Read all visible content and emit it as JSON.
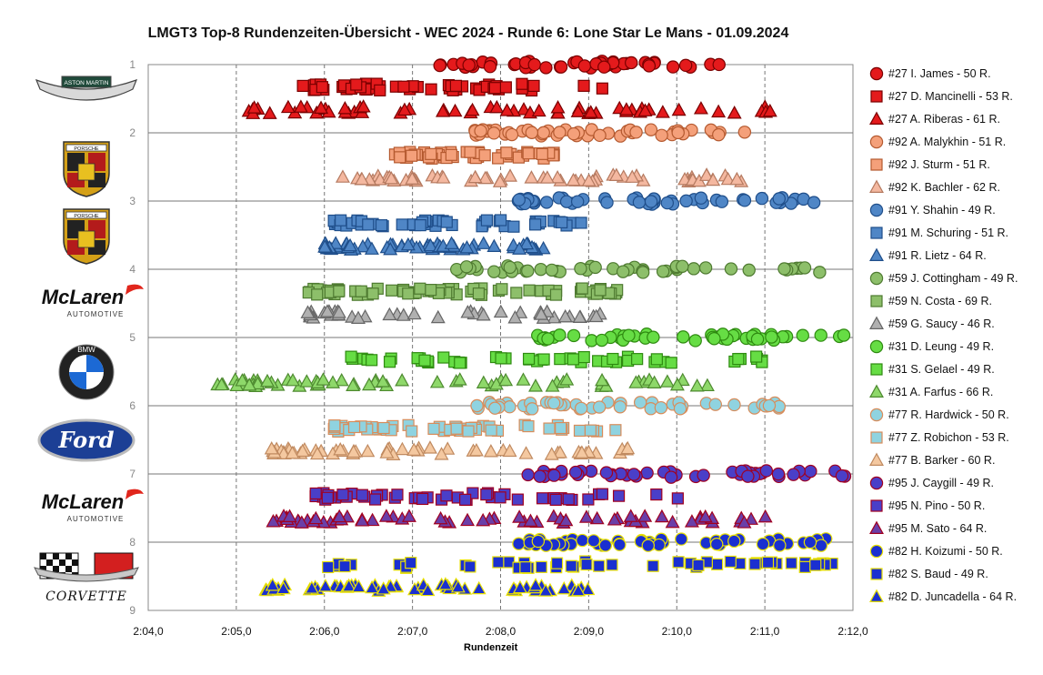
{
  "title": "LMGT3 Top-8 Rundenzeiten-Übersicht - WEC 2024 - Runde 6: Lone Star Le Mans - 01.09.2024",
  "logos": [
    {
      "brand": "aston-martin",
      "text": "ASTON MARTIN"
    },
    {
      "brand": "porsche",
      "text": "PORSCHE"
    },
    {
      "brand": "porsche",
      "text": "PORSCHE"
    },
    {
      "brand": "mclaren",
      "text": "McLaren",
      "sub": "AUTOMOTIVE"
    },
    {
      "brand": "bmw",
      "text": "BMW"
    },
    {
      "brand": "ford",
      "text": "Ford"
    },
    {
      "brand": "mclaren",
      "text": "McLaren",
      "sub": "AUTOMOTIVE"
    },
    {
      "brand": "corvette",
      "text": "CORVETTE"
    }
  ],
  "chart_data": {
    "type": "scatter",
    "title": "LMGT3 Top-8 Rundenzeiten-Übersicht - WEC 2024 - Runde 6: Lone Star Le Mans - 01.09.2024",
    "xlabel": "Rundenzeit",
    "ylabel": "",
    "x_ticks": [
      "2:04,0",
      "2:05,0",
      "2:06,0",
      "2:07,0",
      "2:08,0",
      "2:09,0",
      "2:10,0",
      "2:11,0",
      "2:12,0"
    ],
    "y_ticks": [
      "1",
      "2",
      "3",
      "4",
      "5",
      "6",
      "7",
      "8",
      "9"
    ],
    "xlim_seconds": [
      124.0,
      132.0
    ],
    "ylim": [
      1,
      9
    ],
    "y_reversed": true,
    "grid": {
      "x": "dashed",
      "y": "solid"
    },
    "legend_position": "right",
    "series": [
      {
        "name": "#27 I. James - 50 R.",
        "marker": "circle",
        "fill": "#e41a1c",
        "edge": "#7a0000",
        "y": 1.0,
        "x_range": [
          127.3,
          130.5
        ],
        "laps": 50
      },
      {
        "name": "#27 D. Mancinelli - 53 R.",
        "marker": "square",
        "fill": "#e41a1c",
        "edge": "#7a0000",
        "y": 1.33,
        "x_range": [
          125.75,
          129.3
        ],
        "laps": 53
      },
      {
        "name": "#27 A. Riberas - 61 R.",
        "marker": "triangle",
        "fill": "#e41a1c",
        "edge": "#7a0000",
        "y": 1.67,
        "x_range": [
          125.1,
          131.2
        ],
        "laps": 61
      },
      {
        "name": "#92 A. Malykhin - 51 R.",
        "marker": "circle",
        "fill": "#f4a07a",
        "edge": "#b55a30",
        "y": 2.0,
        "x_range": [
          127.7,
          130.8
        ],
        "laps": 51
      },
      {
        "name": "#92 J. Sturm - 51 R.",
        "marker": "square",
        "fill": "#f4a07a",
        "edge": "#b55a30",
        "y": 2.33,
        "x_range": [
          126.8,
          128.7
        ],
        "laps": 51
      },
      {
        "name": "#92 K. Bachler - 62 R.",
        "marker": "triangle",
        "fill": "#f4b8a0",
        "edge": "#b57a60",
        "y": 2.67,
        "x_range": [
          126.2,
          130.8
        ],
        "laps": 62
      },
      {
        "name": "#91 Y. Shahin - 49 R.",
        "marker": "circle",
        "fill": "#4f86c6",
        "edge": "#1f4e8a",
        "y": 3.0,
        "x_range": [
          128.2,
          131.7
        ],
        "laps": 49
      },
      {
        "name": "#91 M. Schuring - 51 R.",
        "marker": "square",
        "fill": "#4f86c6",
        "edge": "#1f4e8a",
        "y": 3.33,
        "x_range": [
          126.1,
          129.0
        ],
        "laps": 51
      },
      {
        "name": "#91 R. Lietz - 64 R.",
        "marker": "triangle",
        "fill": "#4f86c6",
        "edge": "#1f4e8a",
        "y": 3.67,
        "x_range": [
          126.0,
          128.5
        ],
        "laps": 64
      },
      {
        "name": "#59 J. Cottingham - 49 R.",
        "marker": "circle",
        "fill": "#8dbf6a",
        "edge": "#4e7a30",
        "y": 4.0,
        "x_range": [
          127.5,
          131.8
        ],
        "laps": 49
      },
      {
        "name": "#59 N. Costa - 69 R.",
        "marker": "square",
        "fill": "#8dbf6a",
        "edge": "#4e7a30",
        "y": 4.33,
        "x_range": [
          125.8,
          129.5
        ],
        "laps": 69
      },
      {
        "name": "#59 G. Saucy - 46 R.",
        "marker": "triangle",
        "fill": "#b0b0b0",
        "edge": "#666666",
        "y": 4.67,
        "x_range": [
          125.8,
          129.2
        ],
        "laps": 46
      },
      {
        "name": "#31 D. Leung - 49 R.",
        "marker": "circle",
        "fill": "#66dd44",
        "edge": "#2e8a10",
        "y": 5.0,
        "x_range": [
          128.3,
          131.9
        ],
        "laps": 49
      },
      {
        "name": "#31 S. Gelael - 49 R.",
        "marker": "square",
        "fill": "#66dd44",
        "edge": "#2e8a10",
        "y": 5.33,
        "x_range": [
          126.3,
          131.0
        ],
        "laps": 49
      },
      {
        "name": "#31 A. Farfus - 66 R.",
        "marker": "triangle",
        "fill": "#8ed86a",
        "edge": "#4e8a30",
        "y": 5.67,
        "x_range": [
          124.7,
          130.5
        ],
        "laps": 66
      },
      {
        "name": "#77 R. Hardwick - 50 R.",
        "marker": "circle",
        "fill": "#8fd3e0",
        "edge": "#d88c5a",
        "y": 6.0,
        "x_range": [
          127.7,
          131.3
        ],
        "laps": 50
      },
      {
        "name": "#77 Z. Robichon - 53 R.",
        "marker": "square",
        "fill": "#8fd3e0",
        "edge": "#d88c5a",
        "y": 6.33,
        "x_range": [
          126.1,
          129.4
        ],
        "laps": 53
      },
      {
        "name": "#77 B. Barker - 60 R.",
        "marker": "triangle",
        "fill": "#f4c8a0",
        "edge": "#c08a60",
        "y": 6.67,
        "x_range": [
          125.4,
          129.5
        ],
        "laps": 60
      },
      {
        "name": "#95 J. Caygill - 49 R.",
        "marker": "circle",
        "fill": "#4a3fc8",
        "edge": "#a00020",
        "y": 7.0,
        "x_range": [
          128.3,
          132.0
        ],
        "laps": 49
      },
      {
        "name": "#95 N. Pino - 50 R.",
        "marker": "square",
        "fill": "#4a3fc8",
        "edge": "#a00020",
        "y": 7.33,
        "x_range": [
          125.9,
          130.1
        ],
        "laps": 50
      },
      {
        "name": "#95 M. Sato - 64 R.",
        "marker": "triangle",
        "fill": "#6a3fa8",
        "edge": "#a00020",
        "y": 7.67,
        "x_range": [
          125.4,
          131.1
        ],
        "laps": 64
      },
      {
        "name": "#82 H. Koizumi - 50 R.",
        "marker": "circle",
        "fill": "#1a2fd0",
        "edge": "#e8e000",
        "y": 8.0,
        "x_range": [
          128.2,
          131.8
        ],
        "laps": 50
      },
      {
        "name": "#82 S. Baud - 49 R.",
        "marker": "square",
        "fill": "#1a2fd0",
        "edge": "#e8e000",
        "y": 8.33,
        "x_range": [
          126.0,
          131.8
        ],
        "laps": 49
      },
      {
        "name": "#82 D. Juncadella - 64 R.",
        "marker": "triangle",
        "fill": "#1a2fd0",
        "edge": "#e8e000",
        "y": 8.67,
        "x_range": [
          125.3,
          129.1
        ],
        "laps": 64
      }
    ]
  }
}
